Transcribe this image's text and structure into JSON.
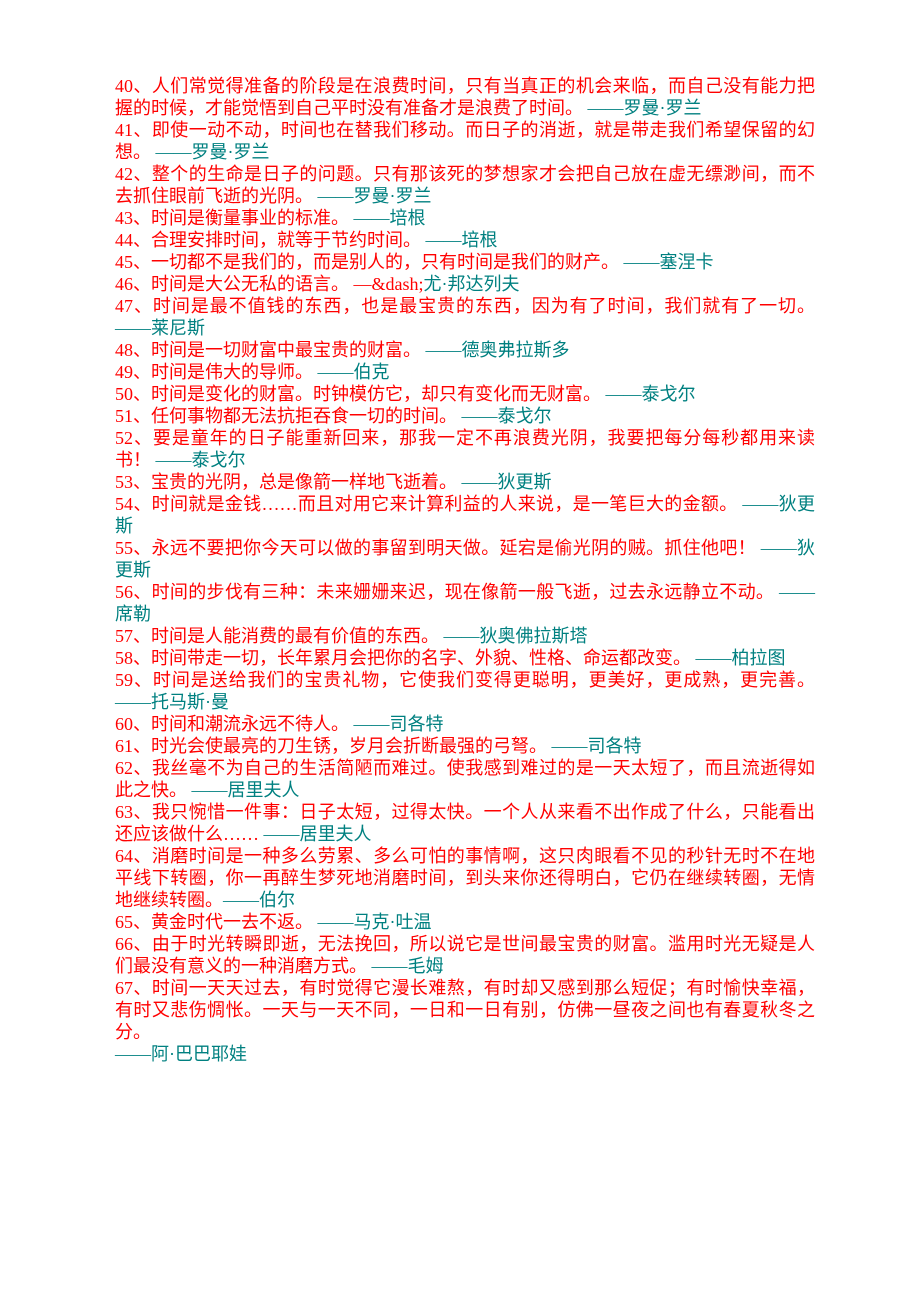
{
  "quotes": [
    {
      "num": "40",
      "text": "人们常觉得准备的阶段是在浪费时间，只有当真正的机会来临，而自己没有能力把握的时候，才能觉悟到自己平时没有准备才是浪费了时间。 ",
      "author": "——罗曼·罗兰"
    },
    {
      "num": "41",
      "text": "即使一动不动，时间也在替我们移动。而日子的消逝，就是带走我们希望保留的幻想。 ",
      "author": "——罗曼·罗兰"
    },
    {
      "num": "42",
      "text": "整个的生命是日子的问题。只有那该死的梦想家才会把自己放在虚无缥渺间，而不去抓住眼前飞逝的光阴。 ",
      "author": "——罗曼·罗兰"
    },
    {
      "num": "43",
      "text": "时间是衡量事业的标准。 ",
      "author": "——培根"
    },
    {
      "num": "44",
      "text": "合理安排时间，就等于节约时间。 ",
      "author": "——培根"
    },
    {
      "num": "45",
      "text": "一切都不是我们的，而是别人的，只有时间是我们的财产。 ",
      "author": "——塞涅卡"
    },
    {
      "num": "46",
      "text": "时间是大公无私的语言。 —&dash;",
      "author": "尤·邦达列夫"
    },
    {
      "num": "47",
      "text": "时间是最不值钱的东西，也是最宝贵的东西，因为有了时间，我们就有了一切。 ",
      "author": "——莱尼斯"
    },
    {
      "num": "48",
      "text": "时间是一切财富中最宝贵的财富。 ",
      "author": "——德奥弗拉斯多"
    },
    {
      "num": "49",
      "text": "时间是伟大的导师。 ",
      "author": "——伯克"
    },
    {
      "num": "50",
      "text": "时间是变化的财富。时钟模仿它，却只有变化而无财富。 ",
      "author": "——泰戈尔"
    },
    {
      "num": "51",
      "text": "任何事物都无法抗拒吞食一切的时间。 ",
      "author": "——泰戈尔"
    },
    {
      "num": "52",
      "text": "要是童年的日子能重新回来，那我一定不再浪费光阴，我要把每分每秒都用来读书！ ",
      "author": "——泰戈尔"
    },
    {
      "num": "53",
      "text": "宝贵的光阴，总是像箭一样地飞逝着。 ",
      "author": "——狄更斯"
    },
    {
      "num": "54",
      "text": "时间就是金钱……而且对用它来计算利益的人来说，是一笔巨大的金额。 ",
      "author": "——狄更斯"
    },
    {
      "num": "55",
      "text": "永远不要把你今天可以做的事留到明天做。延宕是偷光阴的贼。抓住他吧！ ",
      "author": "——狄更斯"
    },
    {
      "num": "56",
      "text": "时间的步伐有三种：未来姗姗来迟，现在像箭一般飞逝，过去永远静立不动。 ",
      "author": "——席勒"
    },
    {
      "num": "57",
      "text": "时间是人能消费的最有价值的东西。 ",
      "author": "——狄奥佛拉斯塔"
    },
    {
      "num": "58",
      "text": "时间带走一切，长年累月会把你的名字、外貌、性格、命运都改变。 ",
      "author": "——柏拉图"
    },
    {
      "num": "59",
      "text": "时间是送给我们的宝贵礼物，它使我们变得更聪明，更美好，更成熟，更完善。 ",
      "author": "——托马斯·曼"
    },
    {
      "num": "60",
      "text": "时间和潮流永远不待人。 ",
      "author": "——司各特"
    },
    {
      "num": "61",
      "text": "时光会使最亮的刀生锈，岁月会折断最强的弓弩。 ",
      "author": "——司各特"
    },
    {
      "num": "62",
      "text": "我丝毫不为自己的生活简陋而难过。使我感到难过的是一天太短了，而且流逝得如此之快。 ",
      "author": "——居里夫人"
    },
    {
      "num": "63",
      "text": "我只惋惜一件事：日子太短，过得太快。一个人从来看不出作成了什么，只能看出还应该做什么…… ",
      "author": "——居里夫人"
    },
    {
      "num": "64",
      "text": "消磨时间是一种多么劳累、多么可怕的事情啊，这只肉眼看不见的秒针无时不在地平线下转圈，你一再醉生梦死地消磨时间，到头来你还得明白，它仍在继续转圈，无情地继续转圈。",
      "author": "——伯尔"
    },
    {
      "num": "65",
      "text": "黄金时代一去不返。 ",
      "author": "——马克·吐温"
    },
    {
      "num": "66",
      "text": "由于时光转瞬即逝，无法挽回，所以说它是世间最宝贵的财富。滥用时光无疑是人们最没有意义的一种消磨方式。 ",
      "author": "——毛姆"
    },
    {
      "num": "67",
      "text": "时间一天天过去，有时觉得它漫长难熬，有时却又感到那么短促；有时愉快幸福，有时又悲伤惆怅。一天与一天不同，一日和一日有别，仿佛一昼夜之间也有春夏秋冬之分。",
      "author_newline": true,
      "author": "——阿·巴巴耶娃"
    }
  ],
  "colors": {
    "text": "#ff0000",
    "author": "#008080",
    "background": "#ffffff"
  },
  "font_size": 18,
  "line_height": 22
}
